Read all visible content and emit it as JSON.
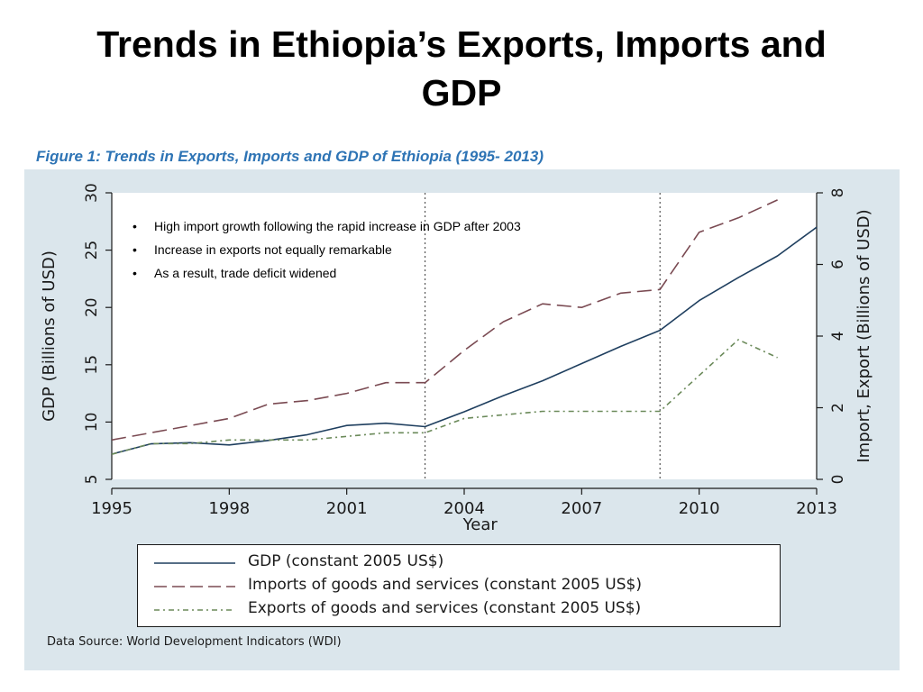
{
  "slide": {
    "title": "Trends in Ethiopia’s Exports, Imports and GDP",
    "figure_caption": "Figure 1: Trends in Exports, Imports and GDP of Ethiopia (1995- 2013)",
    "bullets": [
      "High import growth following the rapid increase in GDP after 2003",
      "Increase in exports not equally remarkable",
      "As a result, trade deficit widened"
    ],
    "bullet_symbol": "•",
    "data_source": "Data Source: World Development Indicators (WDI)"
  },
  "chart_data": {
    "type": "line",
    "xlabel": "Year",
    "ylabel_left": "GDP (Billions of USD)",
    "ylabel_right": "Import, Export (Billions of USD)",
    "xlim": [
      1995,
      2013
    ],
    "ylim_left": [
      5,
      30
    ],
    "ylim_right": [
      0,
      8
    ],
    "x_ticks": [
      1995,
      1998,
      2001,
      2004,
      2007,
      2010,
      2013
    ],
    "y_ticks_left": [
      5,
      10,
      15,
      20,
      25,
      30
    ],
    "y_ticks_right": [
      0,
      2,
      4,
      6,
      8
    ],
    "vertical_reference_lines": [
      2003,
      2009
    ],
    "background_color": "#dbe6ec",
    "plot_background_color": "#ffffff",
    "series": [
      {
        "name": "GDP (constant 2005 US$)",
        "axis": "left",
        "style": "solid",
        "color": "#1f3f5f",
        "x": [
          1995,
          1996,
          1997,
          1998,
          1999,
          2000,
          2001,
          2002,
          2003,
          2004,
          2005,
          2006,
          2007,
          2008,
          2009,
          2010,
          2011,
          2012,
          2013
        ],
        "values": [
          7.2,
          8.1,
          8.2,
          8.0,
          8.4,
          8.9,
          9.7,
          9.9,
          9.6,
          10.9,
          12.3,
          13.6,
          15.1,
          16.6,
          18.0,
          20.6,
          22.6,
          24.5,
          27.0
        ]
      },
      {
        "name": "Imports of goods and services (constant 2005 US$)",
        "axis": "right",
        "style": "longdash",
        "color": "#7a4a52",
        "x": [
          1995,
          1996,
          1997,
          1998,
          1999,
          2000,
          2001,
          2002,
          2003,
          2004,
          2005,
          2006,
          2007,
          2008,
          2009,
          2010,
          2011,
          2012
        ],
        "values": [
          1.1,
          1.3,
          1.5,
          1.7,
          2.1,
          2.2,
          2.4,
          2.7,
          2.7,
          3.6,
          4.4,
          4.9,
          4.8,
          5.2,
          5.3,
          6.9,
          7.3,
          7.8
        ]
      },
      {
        "name": "Exports of goods and services (constant 2005 US$)",
        "axis": "right",
        "style": "dashdot",
        "color": "#6b8a5a",
        "x": [
          1995,
          1996,
          1997,
          1998,
          1999,
          2000,
          2001,
          2002,
          2003,
          2004,
          2005,
          2006,
          2007,
          2008,
          2009,
          2010,
          2011,
          2012
        ],
        "values": [
          0.7,
          1.0,
          1.0,
          1.1,
          1.1,
          1.1,
          1.2,
          1.3,
          1.3,
          1.7,
          1.8,
          1.9,
          1.9,
          1.9,
          1.9,
          2.9,
          3.9,
          3.4
        ]
      }
    ],
    "legend_position": "bottom"
  }
}
